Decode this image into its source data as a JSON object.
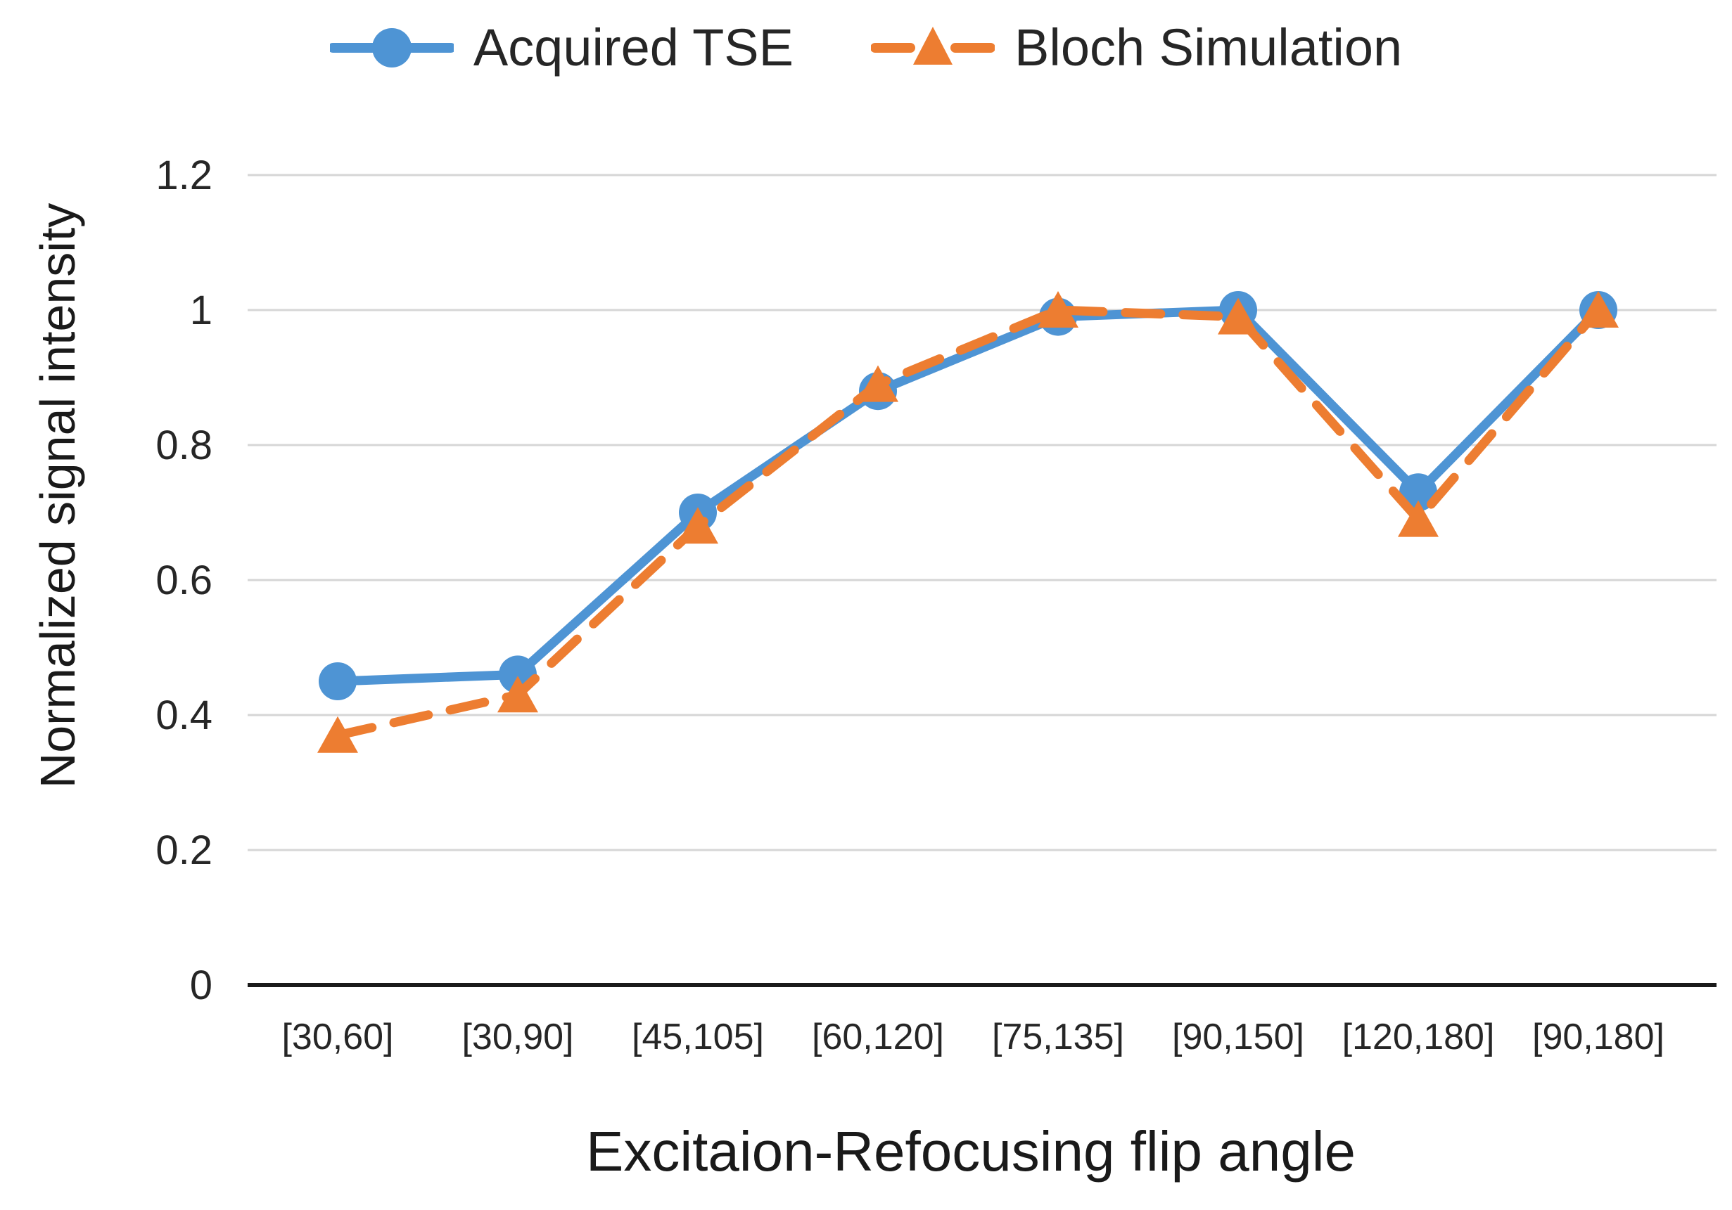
{
  "colors": {
    "background": "#FFFFFF",
    "gridline": "#D6D6D6",
    "axis_line": "#1A1A1A",
    "text": "#262626",
    "series_blue": "#4E94D4",
    "series_orange": "#ED7D31"
  },
  "legend": {
    "items": [
      {
        "label": "Acquired TSE",
        "color": "#4E94D4",
        "marker": "circle",
        "line_style": "solid"
      },
      {
        "label": "Bloch Simulation",
        "color": "#ED7D31",
        "marker": "triangle",
        "line_style": "dashed"
      }
    ]
  },
  "chart_data": {
    "type": "line",
    "title": "",
    "xlabel": "Excitaion-Refocusing flip angle",
    "ylabel": "Normalized signal intensity",
    "categories": [
      "[30,60]",
      "[30,90]",
      "[45,105]",
      "[60,120]",
      "[75,135]",
      "[90,150]",
      "[120,180]",
      "[90,180]"
    ],
    "series": [
      {
        "name": "Acquired TSE",
        "color": "#4E94D4",
        "marker": "circle",
        "line_style": "solid",
        "values": [
          0.45,
          0.46,
          0.7,
          0.88,
          0.99,
          1.0,
          0.73,
          1.0
        ]
      },
      {
        "name": "Bloch Simulation",
        "color": "#ED7D31",
        "marker": "triangle",
        "line_style": "dashed",
        "values": [
          0.37,
          0.43,
          0.68,
          0.89,
          1.0,
          0.99,
          0.69,
          1.0
        ]
      }
    ],
    "ylim": [
      0,
      1.2
    ],
    "ytick_step": 0.2,
    "yticks": [
      "0",
      "0.2",
      "0.4",
      "0.6",
      "0.8",
      "1",
      "1.2"
    ],
    "grid": true,
    "legend_position": "top"
  }
}
